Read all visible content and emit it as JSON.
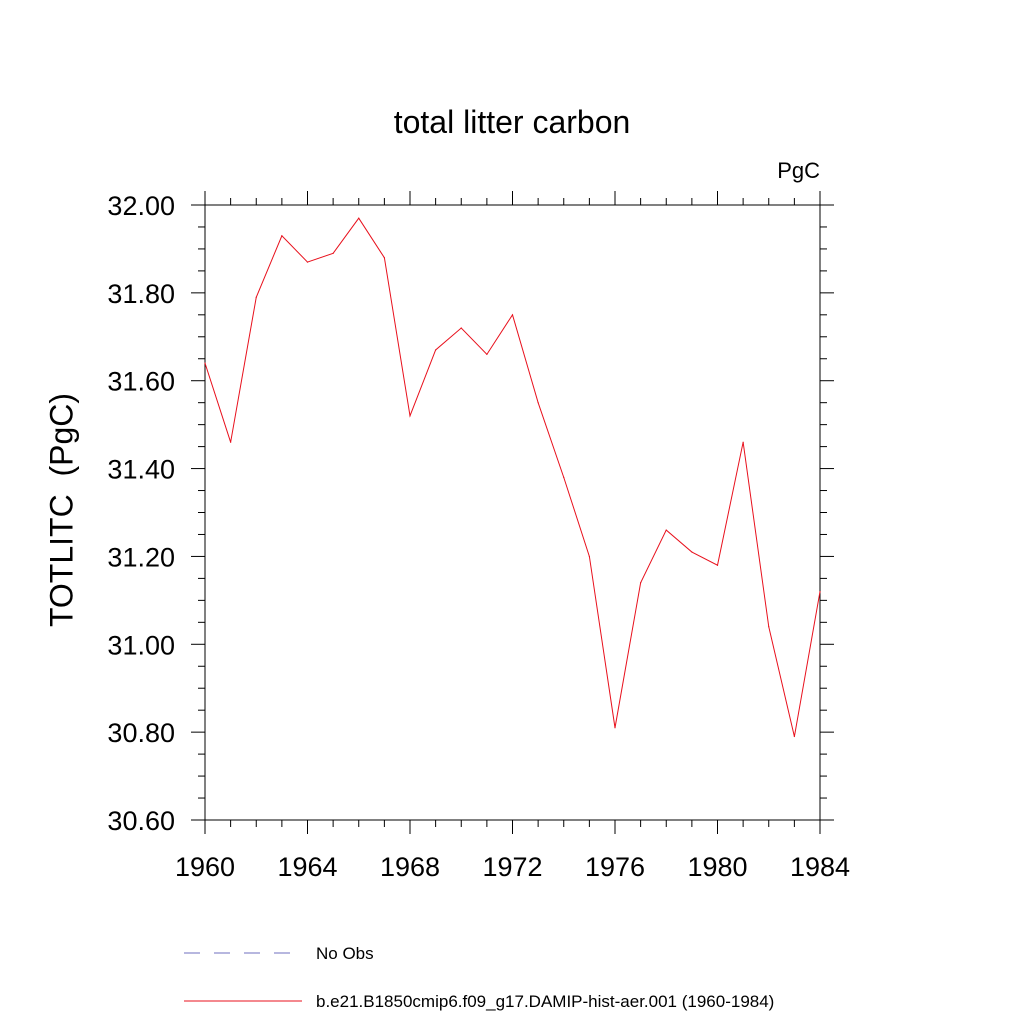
{
  "chart_data": {
    "type": "line",
    "title": "total litter carbon",
    "units": "PgC",
    "ylabel": "TOTLITC  (PgC)",
    "xlabel": "",
    "xlim": [
      1960,
      1984
    ],
    "ylim": [
      30.6,
      32.0
    ],
    "x_ticks": [
      "1960",
      "1964",
      "1968",
      "1972",
      "1976",
      "1980",
      "1984"
    ],
    "y_ticks": [
      "30.60",
      "30.80",
      "31.00",
      "31.20",
      "31.40",
      "31.60",
      "31.80",
      "32.00"
    ],
    "grid": false,
    "legend_position": "bottom",
    "series": [
      {
        "name": "No Obs",
        "color": "#6f6fbf",
        "dash": "dashed",
        "x": [],
        "values": []
      },
      {
        "name": "b.e21.B1850cmip6.f09_g17.DAMIP-hist-aer.001 (1960-1984)",
        "color": "#e8101c",
        "dash": "solid",
        "x": [
          1960,
          1961,
          1962,
          1963,
          1964,
          1965,
          1966,
          1967,
          1968,
          1969,
          1970,
          1971,
          1972,
          1973,
          1974,
          1975,
          1976,
          1977,
          1978,
          1979,
          1980,
          1981,
          1982,
          1983,
          1984
        ],
        "values": [
          31.64,
          31.46,
          31.79,
          31.93,
          31.87,
          31.89,
          31.97,
          31.88,
          31.52,
          31.67,
          31.72,
          31.66,
          31.75,
          31.55,
          31.38,
          31.2,
          30.81,
          31.14,
          31.26,
          31.21,
          31.18,
          31.46,
          31.04,
          30.79,
          31.12
        ]
      }
    ]
  }
}
